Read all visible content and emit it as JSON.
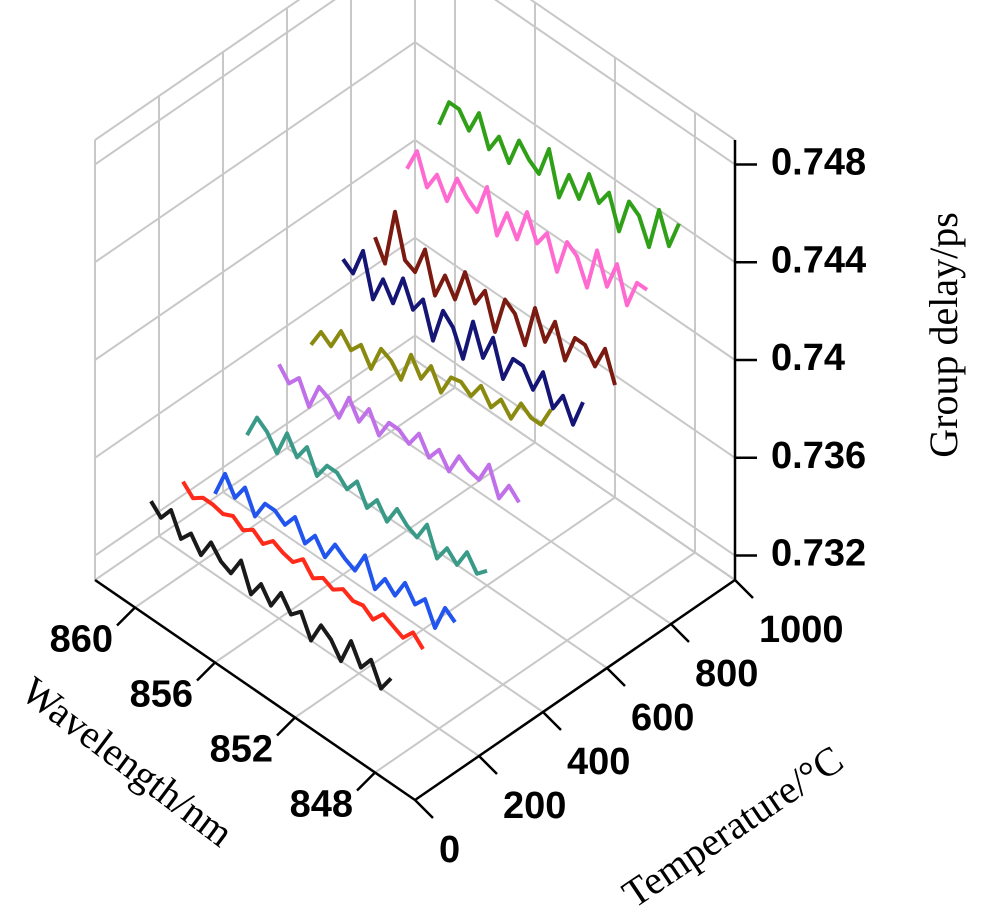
{
  "chart_data": {
    "type": "line3d",
    "x_label": "Wavelength/nm",
    "y_label": "Group delay/ps",
    "z_label": "Temperature/°C",
    "xlim": [
      846,
      862
    ],
    "xticks": [
      848,
      852,
      856,
      860
    ],
    "ylim": [
      0.731,
      0.749
    ],
    "yticks": [
      0.732,
      0.736,
      0.74,
      0.744,
      0.748
    ],
    "zlim": [
      0,
      1000
    ],
    "zticks": [
      0,
      200,
      400,
      600,
      800,
      1000
    ],
    "grid": true,
    "x": [
      848,
      848.5,
      849,
      849.5,
      850,
      850.5,
      851,
      851.5,
      852,
      852.5,
      853,
      853.5,
      854,
      854.5,
      855,
      855.5,
      856,
      856.5,
      857,
      857.5,
      858,
      858.5,
      859,
      859.5,
      860
    ],
    "series": [
      {
        "color": "#1a1a1a",
        "z": 50,
        "values": [
          0.7344,
          0.7337,
          0.7346,
          0.734,
          0.7348,
          0.7337,
          0.7343,
          0.7346,
          0.7337,
          0.7346,
          0.7342,
          0.7348,
          0.734,
          0.7346,
          0.7339,
          0.735,
          0.7342,
          0.7344,
          0.7349,
          0.7341,
          0.7347,
          0.7342,
          0.7351,
          0.7345,
          0.7349
        ]
      },
      {
        "color": "#ff2a1a",
        "z": 150,
        "values": [
          0.7347,
          0.7351,
          0.7346,
          0.7348,
          0.735,
          0.7345,
          0.7348,
          0.7347,
          0.7349,
          0.7346,
          0.7348,
          0.7345,
          0.735,
          0.7346,
          0.7347,
          0.7349,
          0.7345,
          0.7348,
          0.7345,
          0.7348,
          0.7346,
          0.7347,
          0.7347,
          0.7344,
          0.7348
        ]
      },
      {
        "color": "#2255ee",
        "z": 250,
        "values": [
          0.7349,
          0.7352,
          0.7341,
          0.735,
          0.7345,
          0.7351,
          0.7343,
          0.7347,
          0.734,
          0.7351,
          0.7342,
          0.7344,
          0.7347,
          0.7339,
          0.7345,
          0.7339,
          0.7347,
          0.7341,
          0.7344,
          0.7344,
          0.7336,
          0.7345,
          0.7338,
          0.7345,
          0.7334
        ]
      },
      {
        "color": "#3a9a88",
        "z": 350,
        "values": [
          0.7361,
          0.7357,
          0.7363,
          0.7355,
          0.7359,
          0.7352,
          0.7363,
          0.7355,
          0.7357,
          0.7361,
          0.7353,
          0.7359,
          0.7353,
          0.7361,
          0.7355,
          0.7359,
          0.7359,
          0.7352,
          0.7361,
          0.7354,
          0.7361,
          0.735,
          0.7356,
          0.7359,
          0.7349
        ]
      },
      {
        "color": "#c070e8",
        "z": 450,
        "values": [
          0.738,
          0.7384,
          0.7376,
          0.7387,
          0.7378,
          0.7379,
          0.7382,
          0.7373,
          0.7379,
          0.7373,
          0.738,
          0.7373,
          0.7376,
          0.7376,
          0.7368,
          0.7376,
          0.7368,
          0.7375,
          0.7364,
          0.7369,
          0.7371,
          0.736,
          0.7369,
          0.7364,
          0.7369
        ]
      },
      {
        "color": "#8a8a10",
        "z": 550,
        "values": [
          0.7409,
          0.74,
          0.74,
          0.7403,
          0.7394,
          0.7399,
          0.7393,
          0.7399,
          0.7392,
          0.7395,
          0.7394,
          0.7385,
          0.7393,
          0.7385,
          0.7392,
          0.7379,
          0.7384,
          0.7386,
          0.7375,
          0.7382,
          0.7377,
          0.7382,
          0.7373,
          0.7376,
          0.7368
        ]
      },
      {
        "color": "#151575",
        "z": 650,
        "values": [
          0.7403,
          0.7391,
          0.74,
          0.7392,
          0.7404,
          0.7394,
          0.7401,
          0.7401,
          0.739,
          0.7404,
          0.7393,
          0.7405,
          0.7387,
          0.7397,
          0.7401,
          0.7386,
          0.74,
          0.7393,
          0.7403,
          0.739,
          0.7397,
          0.7386,
          0.7403,
          0.7391,
          0.7394
        ]
      },
      {
        "color": "#7a1a10",
        "z": 750,
        "values": [
          0.7401,
          0.7413,
          0.7403,
          0.7409,
          0.7409,
          0.7397,
          0.741,
          0.7399,
          0.741,
          0.7392,
          0.7402,
          0.7405,
          0.7389,
          0.7403,
          0.7395,
          0.7405,
          0.7391,
          0.7398,
          0.7387,
          0.7403,
          0.7391,
          0.7393,
          0.741,
          0.7386,
          0.7394
        ]
      },
      {
        "color": "#ff6ad0",
        "z": 850,
        "values": [
          0.7431,
          0.7431,
          0.7419,
          0.7433,
          0.7421,
          0.7433,
          0.7415,
          0.7425,
          0.7428,
          0.7413,
          0.7426,
          0.7419,
          0.7429,
          0.7415,
          0.7423,
          0.7411,
          0.7428,
          0.7415,
          0.7418,
          0.7423,
          0.7411,
          0.7419,
          0.7411,
          0.7423,
          0.7413
        ]
      },
      {
        "color": "#30a018",
        "z": 950,
        "values": [
          0.7449,
          0.7437,
          0.7449,
          0.7431,
          0.7441,
          0.7444,
          0.7429,
          0.7442,
          0.7435,
          0.7444,
          0.7431,
          0.7438,
          0.7426,
          0.7443,
          0.743,
          0.7433,
          0.7438,
          0.7426,
          0.7434,
          0.7426,
          0.7438,
          0.7428,
          0.7434,
          0.7434,
          0.7422
        ]
      }
    ]
  }
}
